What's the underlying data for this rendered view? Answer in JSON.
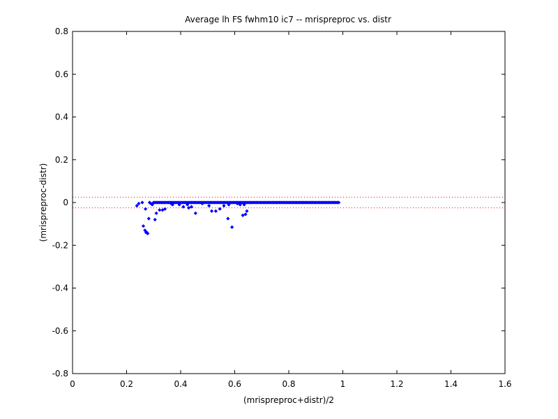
{
  "chart_data": {
    "type": "scatter",
    "title": "Average lh FS fwhm10 ic7 -- mrispreproc vs. distr",
    "xlabel": "(mrispreproc+distr)/2",
    "ylabel": "(mrispreproc-distr)",
    "xlim": [
      0,
      1.6
    ],
    "ylim": [
      -0.8,
      0.8
    ],
    "xticks": [
      "0",
      "0.2",
      "0.4",
      "0.6",
      "0.8",
      "1",
      "1.2",
      "1.4",
      "1.6"
    ],
    "yticks": [
      "-0.8",
      "-0.6",
      "-0.4",
      "-0.2",
      "0",
      "0.2",
      "0.4",
      "0.6",
      "0.8"
    ],
    "grid": false,
    "marker_color": "#0000ff",
    "reference_line_color": "#ff0000",
    "reference_lines": [
      0.025,
      -0.025
    ],
    "points": {
      "x": [
        0.238,
        0.245,
        0.258,
        0.262,
        0.268,
        0.27,
        0.272,
        0.275,
        0.278,
        0.282,
        0.285,
        0.29,
        0.295,
        0.305,
        0.31,
        0.322,
        0.333,
        0.342,
        0.365,
        0.37,
        0.395,
        0.41,
        0.425,
        0.43,
        0.44,
        0.455,
        0.48,
        0.505,
        0.515,
        0.53,
        0.545,
        0.56,
        0.575,
        0.578,
        0.59,
        0.61,
        0.62,
        0.63,
        0.635,
        0.64,
        0.645
      ],
      "y": [
        -0.015,
        -0.005,
        0.0,
        -0.11,
        -0.13,
        -0.03,
        -0.14,
        -0.14,
        -0.145,
        -0.075,
        0.0,
        -0.005,
        -0.01,
        -0.08,
        -0.05,
        -0.035,
        -0.035,
        -0.03,
        -0.005,
        -0.01,
        -0.01,
        -0.02,
        -0.01,
        -0.025,
        -0.02,
        -0.05,
        -0.005,
        -0.015,
        -0.04,
        -0.04,
        -0.03,
        -0.015,
        -0.075,
        -0.01,
        -0.115,
        -0.005,
        -0.01,
        -0.06,
        -0.01,
        -0.055,
        -0.04
      ],
      "dense_band": {
        "x_start": 0.3,
        "x_end": 0.985,
        "x_step": 0.005,
        "y": 0.0
      }
    }
  }
}
